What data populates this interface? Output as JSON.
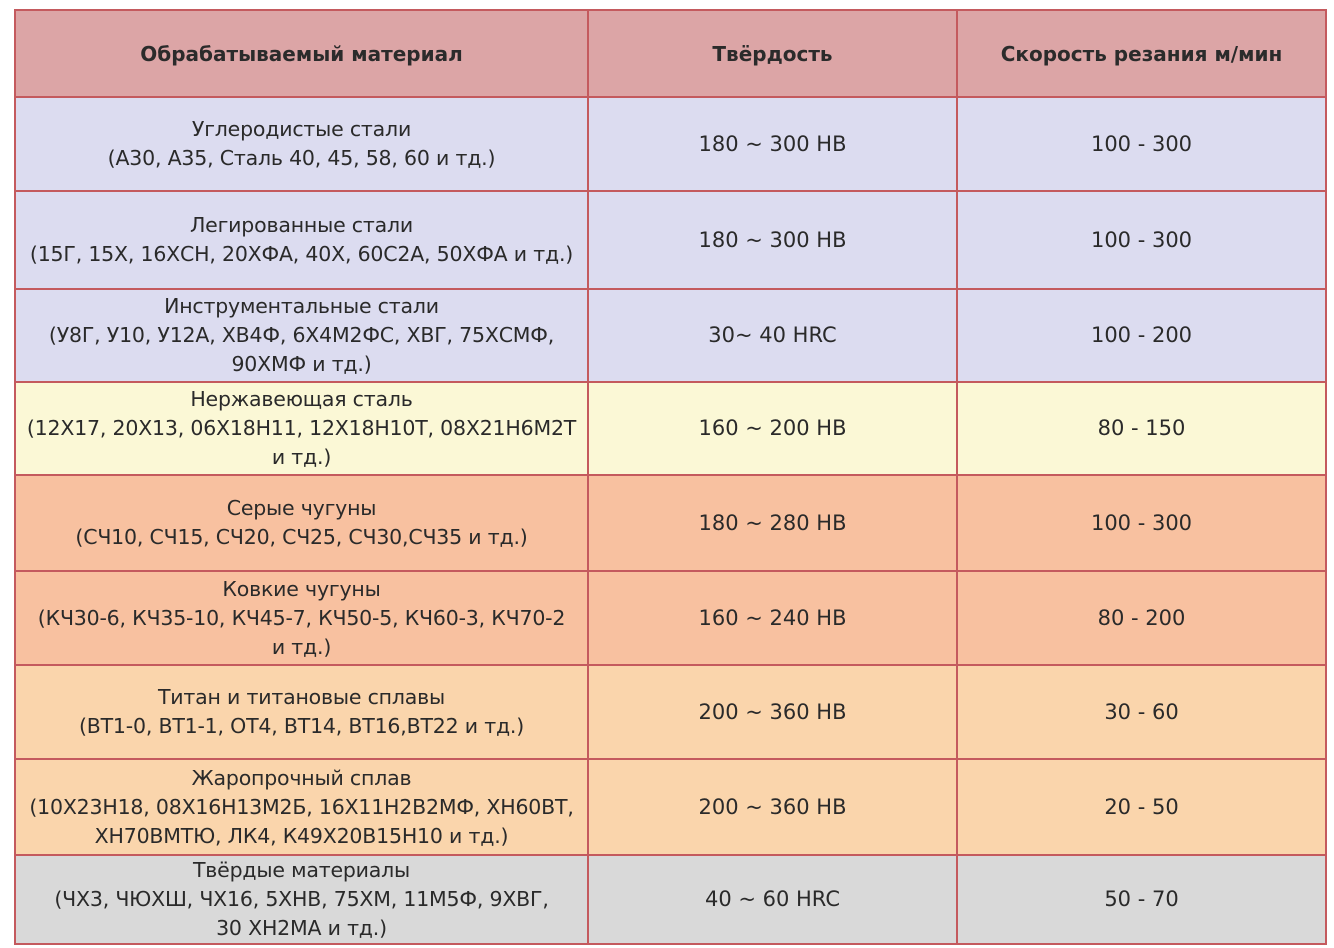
{
  "table": {
    "headers": {
      "material": "Обрабатываемый материал",
      "hardness": "Твёрдость",
      "speed": "Скорость резания м/мин"
    },
    "rows": [
      {
        "material": "Углеродистые стали\n(А30, А35, Сталь 40, 45, 58, 60 и тд.)",
        "hardness": "180 ~ 300 НВ",
        "speed": "100 - 300",
        "color": "#dcdcf0",
        "height": 94
      },
      {
        "material": "Легированные стали\n(15Г, 15Х, 16ХСН, 20ХФА, 40Х, 60С2А, 50ХФА и тд.)",
        "hardness": "180 ~ 300 НВ",
        "speed": "100 - 300",
        "color": "#dcdcf0",
        "height": 98
      },
      {
        "material": "Инструментальные стали\n(У8Г, У10, У12А, ХВ4Ф, 6Х4М2ФС, ХВГ, 75ХСМФ,\n90ХМФ и тд.)",
        "hardness": "30~ 40 HRC",
        "speed": "100 - 200",
        "color": "#dcdcf0",
        "height": 93
      },
      {
        "material": "Нержавеющая сталь\n(12Х17, 20Х13, 06Х18Н11, 12Х18Н10Т, 08Х21Н6М2Т\nи тд.)",
        "hardness": "160 ~ 200 НВ",
        "speed": "80 - 150",
        "color": "#fbf8d6",
        "height": 93
      },
      {
        "material": "Серые чугуны\n(СЧ10, СЧ15, СЧ20, СЧ25, СЧ30,СЧ35 и тд.)",
        "hardness": "180 ~ 280 НВ",
        "speed": "100 - 300",
        "color": "#f8c1a0",
        "height": 96
      },
      {
        "material": "Ковкие чугуны\n(КЧ30-6, КЧ35-10, КЧ45-7, КЧ50-5, КЧ60-3, КЧ70-2\nи тд.)",
        "hardness": "160 ~ 240 НВ",
        "speed": "80 - 200",
        "color": "#f8c1a0",
        "height": 94
      },
      {
        "material": "Титан и титановые сплавы\n(ВТ1-0, ВТ1-1, ОТ4, ВТ14, ВТ16,ВТ22  и тд.)",
        "hardness": "200 ~ 360 НВ",
        "speed": "30 - 60",
        "color": "#fad5ac",
        "height": 94
      },
      {
        "material": "Жаропрочный сплав\n(10Х23Н18, 08Х16Н13М2Б, 16Х11Н2В2МФ, ХН60ВТ,\nХН70ВМТЮ, ЛК4, К49Х20В15Н10 и тд.)",
        "hardness": "200 ~ 360 НВ",
        "speed": "20 - 50",
        "color": "#fad5ac",
        "height": 96
      },
      {
        "material": "Твёрдые материалы\n(ЧХ3, ЧЮХШ, ЧХ16, 5ХНВ, 75ХМ, 11М5Ф, 9ХВГ,\n30 ХН2МА  и тд.)",
        "hardness": "40 ~ 60 HRC",
        "speed": "50 - 70",
        "color": "#d9d9d9",
        "height": 85
      }
    ]
  }
}
